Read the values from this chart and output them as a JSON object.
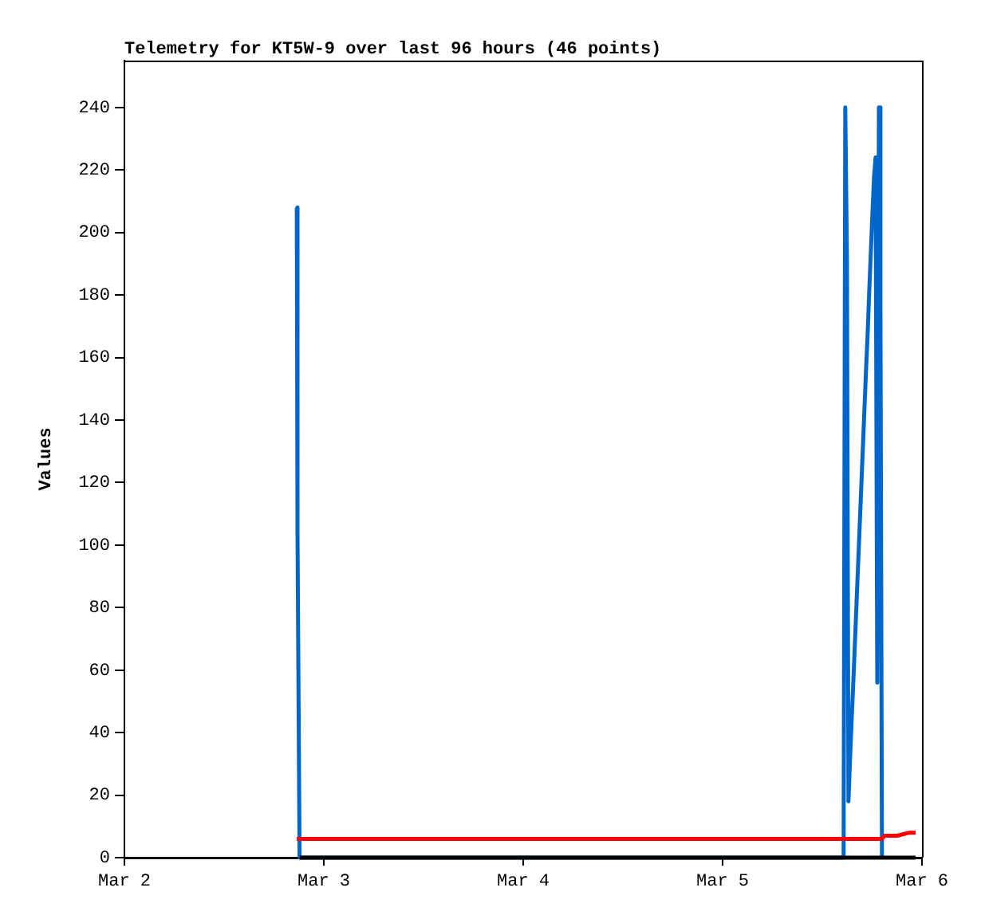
{
  "chart_data": {
    "type": "line",
    "title": "Telemetry for KT5W-9 over last 96 hours (46 points)",
    "ylabel": "Values",
    "xlim": [
      "--03-02",
      "--03-06"
    ],
    "xticks": [
      {
        "value": "--03-02",
        "label": "Mar 2"
      },
      {
        "value": "--03-03",
        "label": "Mar 3"
      },
      {
        "value": "--03-04",
        "label": "Mar 4"
      },
      {
        "value": "--03-05",
        "label": "Mar 5"
      },
      {
        "value": "--03-06",
        "label": "Mar 6"
      }
    ],
    "ylim": [
      0,
      255
    ],
    "yticks": [
      0,
      20,
      40,
      60,
      80,
      100,
      120,
      140,
      160,
      180,
      200,
      220,
      240
    ],
    "grid": false,
    "legend": false,
    "marker": "none",
    "line_style": "solid",
    "series": [
      {
        "color": "#0066cc",
        "x": [
          "--03-02T20:45",
          "--03-02T20:50",
          "--03-02T21:05",
          "--03-05T14:34",
          "--03-05T14:46",
          "--03-05T14:58",
          "--03-05T15:09",
          "--03-05T15:20",
          "--03-05T15:32",
          "--03-05T15:44",
          "--03-05T15:55",
          "--03-05T16:07",
          "--03-05T16:18",
          "--03-05T16:30",
          "--03-05T16:41",
          "--03-05T16:53",
          "--03-05T17:04",
          "--03-05T17:16",
          "--03-05T17:28",
          "--03-05T17:39",
          "--03-05T17:50",
          "--03-05T18:02",
          "--03-05T18:14",
          "--03-05T18:25",
          "--03-05T18:37",
          "--03-05T18:49",
          "--03-05T19:00",
          "--03-05T19:11"
        ],
        "values": [
          208,
          104,
          0,
          0,
          240,
          192,
          18,
          31,
          44,
          56,
          68,
          81,
          93,
          106,
          118,
          131,
          143,
          156,
          168,
          181,
          193,
          206,
          218,
          224,
          56,
          240,
          176,
          0
        ]
      },
      {
        "color": "#ff0000",
        "x": [
          "--03-02T20:45",
          "--03-05T19:11",
          "--03-05T19:30",
          "--03-05T21:00",
          "--03-05T22:30",
          "--03-05T23:14"
        ],
        "values": [
          6,
          6,
          7,
          7,
          8,
          8
        ]
      },
      {
        "color": "#000000",
        "x": [
          "--03-02T21:05",
          "--03-05T23:14"
        ],
        "values": [
          0,
          0
        ]
      }
    ]
  }
}
